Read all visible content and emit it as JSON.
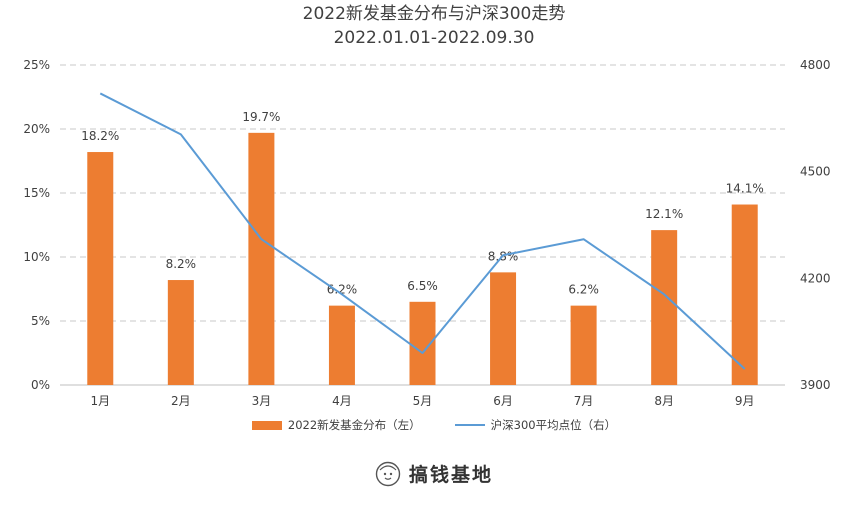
{
  "chart_data": {
    "type": "bar+line",
    "title_line1": "2022新发基金分布与沪深300走势",
    "title_line2": "2022.01.01-2022.09.30",
    "categories": [
      "1月",
      "2月",
      "3月",
      "4月",
      "5月",
      "6月",
      "7月",
      "8月",
      "9月"
    ],
    "series": [
      {
        "name": "2022新发基金分布（左）",
        "type": "bar",
        "axis": "left",
        "values": [
          18.2,
          8.2,
          19.7,
          6.2,
          6.5,
          8.8,
          6.2,
          12.1,
          14.1
        ],
        "labels": [
          "18.2%",
          "8.2%",
          "19.7%",
          "6.2%",
          "6.5%",
          "8.8%",
          "6.2%",
          "12.1%",
          "14.1%"
        ]
      },
      {
        "name": "沪深300平均点位（右）",
        "type": "line",
        "axis": "right",
        "values": [
          4720,
          4605,
          4310,
          4155,
          3990,
          4265,
          4310,
          4155,
          3945
        ]
      }
    ],
    "y_left": {
      "min": 0,
      "max": 25,
      "ticks": [
        0,
        5,
        10,
        15,
        20,
        25
      ],
      "tick_labels": [
        "0%",
        "5%",
        "10%",
        "15%",
        "20%",
        "25%"
      ]
    },
    "y_right": {
      "min": 3900,
      "max": 4800,
      "ticks": [
        3900,
        4200,
        4500,
        4800
      ],
      "tick_labels": [
        "3900",
        "4200",
        "4500",
        "4800"
      ]
    },
    "grid": true,
    "legend": "bottom",
    "colors": {
      "bar": "#ED7D31",
      "line": "#5B9BD5",
      "grid": "#C8C8C8",
      "text": "#404040"
    }
  },
  "logo": {
    "text": "搞钱基地",
    "icon": "smiley-face-icon"
  }
}
